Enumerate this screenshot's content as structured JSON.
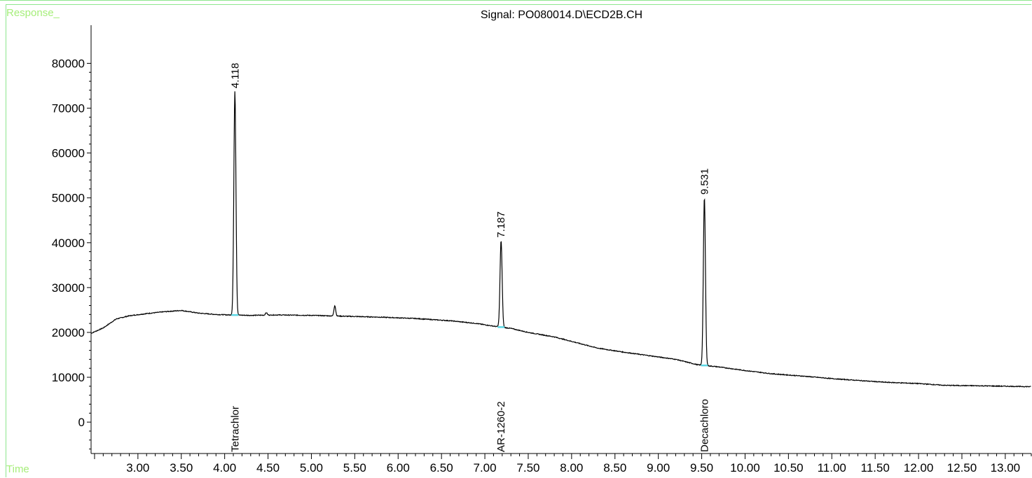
{
  "chart_data": {
    "type": "line",
    "title": "Signal: PO080014.D\\ECD2B.CH",
    "ylabel": "Response_",
    "xlabel": "Time",
    "xlim": [
      2.46,
      13.3
    ],
    "ylim": [
      -7000,
      88500
    ],
    "x_ticks": [
      "3.00",
      "3.50",
      "4.00",
      "4.50",
      "5.00",
      "5.50",
      "6.00",
      "6.50",
      "7.00",
      "7.50",
      "8.00",
      "8.50",
      "9.00",
      "9.50",
      "10.00",
      "10.50",
      "11.00",
      "11.50",
      "12.00",
      "12.50",
      "13.00"
    ],
    "y_ticks": [
      "0",
      "10000",
      "20000",
      "30000",
      "40000",
      "50000",
      "60000",
      "70000",
      "80000"
    ],
    "baseline": [
      [
        2.46,
        19800
      ],
      [
        2.6,
        21000
      ],
      [
        2.75,
        23000
      ],
      [
        2.9,
        23700
      ],
      [
        3.1,
        24200
      ],
      [
        3.3,
        24600
      ],
      [
        3.5,
        24900
      ],
      [
        3.7,
        24300
      ],
      [
        3.9,
        24000
      ],
      [
        4.05,
        23900
      ],
      [
        4.3,
        23800
      ],
      [
        4.6,
        23900
      ],
      [
        5.0,
        23800
      ],
      [
        5.4,
        23600
      ],
      [
        5.8,
        23400
      ],
      [
        6.2,
        23100
      ],
      [
        6.6,
        22600
      ],
      [
        6.9,
        22000
      ],
      [
        7.1,
        21400
      ],
      [
        7.3,
        20900
      ],
      [
        7.5,
        20000
      ],
      [
        7.8,
        19000
      ],
      [
        8.0,
        18000
      ],
      [
        8.3,
        16500
      ],
      [
        8.6,
        15600
      ],
      [
        8.9,
        14800
      ],
      [
        9.2,
        14000
      ],
      [
        9.45,
        12800
      ],
      [
        9.7,
        12300
      ],
      [
        10.0,
        11500
      ],
      [
        10.3,
        10800
      ],
      [
        10.7,
        10200
      ],
      [
        11.0,
        9700
      ],
      [
        11.3,
        9300
      ],
      [
        11.6,
        8900
      ],
      [
        12.0,
        8600
      ],
      [
        12.3,
        8200
      ],
      [
        12.7,
        8100
      ],
      [
        13.0,
        8000
      ],
      [
        13.3,
        7900
      ]
    ],
    "peaks": [
      {
        "x": 4.118,
        "height": 73800,
        "width": 0.012,
        "label": "4.118",
        "compound": "Tetrachlor"
      },
      {
        "x": 7.187,
        "height": 40500,
        "width": 0.012,
        "label": "7.187",
        "compound": "AR-1260-2"
      },
      {
        "x": 9.531,
        "height": 50100,
        "width": 0.012,
        "label": "9.531",
        "compound": "Decachloro"
      },
      {
        "x": 5.27,
        "height": 26000,
        "width": 0.01,
        "label": "",
        "compound": ""
      },
      {
        "x": 4.48,
        "height": 24400,
        "width": 0.01,
        "label": "",
        "compound": ""
      }
    ],
    "marker_color": "#5bd6e3",
    "line_color": "#000000"
  }
}
